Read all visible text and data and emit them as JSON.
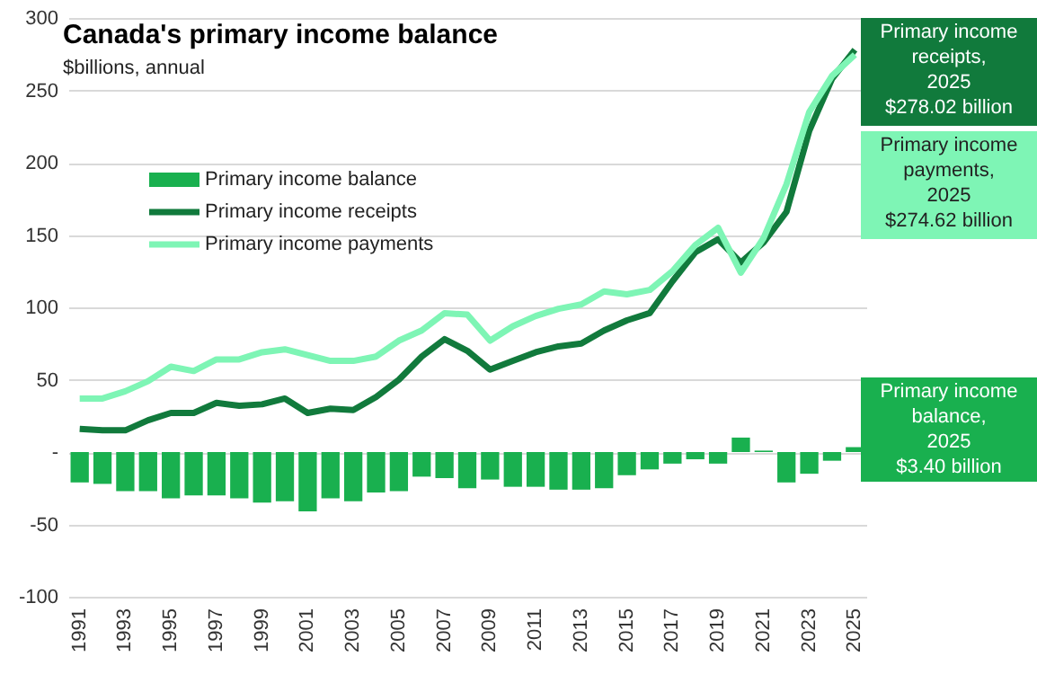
{
  "chart_data": {
    "type": "bar",
    "title": "Canada's primary income balance",
    "subtitle": "$billions, annual",
    "categories": [
      "1991",
      null,
      "1993",
      null,
      "1995",
      null,
      "1997",
      null,
      "1999",
      null,
      "2001",
      null,
      "2003",
      null,
      "2005",
      null,
      "2007",
      null,
      "2009",
      null,
      "2011",
      null,
      "2013",
      null,
      "2015",
      null,
      "2017",
      null,
      "2019",
      null,
      "2021",
      null,
      "2023",
      null,
      "2025"
    ],
    "series": [
      {
        "name": "Primary income balance",
        "color": "#19b04f",
        "values": [
          -21,
          -22,
          -27,
          -27,
          -32,
          -30,
          -30,
          -32,
          -35,
          -34,
          -41,
          -32,
          -34,
          -28,
          -27,
          -17,
          -18,
          -25,
          -19,
          -24,
          -24,
          -26,
          -26,
          -25,
          -16,
          -12,
          -8,
          -5,
          -8,
          10,
          1,
          -21,
          -15,
          -6,
          3.4
        ]
      },
      {
        "name": "Primary income receipts",
        "type": "line",
        "color": "#117a3c",
        "values": [
          16,
          15,
          15,
          22,
          27,
          27,
          34,
          32,
          33,
          37,
          27,
          30,
          29,
          38,
          50,
          66,
          78,
          70,
          57,
          63,
          69,
          73,
          75,
          84,
          91,
          96,
          118,
          138,
          147,
          131,
          145,
          166,
          222,
          258,
          278.02
        ]
      },
      {
        "name": "Primary income payments",
        "type": "line",
        "color": "#7ef5b5",
        "values": [
          37,
          37,
          42,
          49,
          59,
          56,
          64,
          64,
          69,
          71,
          67,
          63,
          63,
          66,
          77,
          84,
          96,
          95,
          77,
          87,
          94,
          99,
          102,
          111,
          109,
          112,
          125,
          143,
          155,
          124,
          148,
          185,
          235,
          260,
          274.62
        ]
      }
    ],
    "ylim": [
      -100,
      300
    ],
    "yticks": [
      -100,
      -50,
      {
        "value": 0,
        "label": "-"
      },
      50,
      100,
      150,
      200,
      250,
      300
    ],
    "grid": "y",
    "legend": "top left",
    "line_style": "solid",
    "marker": "none",
    "annotations": [
      "Primary income\nreceipts,\n2025\n$278.02 billion",
      "Primary income\npayments,\n2025\n$274.62 billion",
      "Primary income\nbalance,\n2025\n$3.40 billion"
    ]
  }
}
